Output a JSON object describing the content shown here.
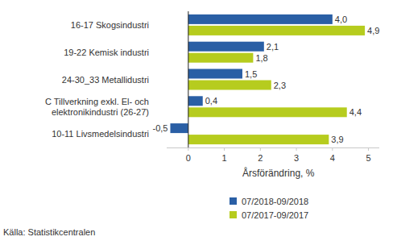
{
  "chart_data": {
    "type": "bar",
    "orientation": "horizontal",
    "categories": [
      "16-17 Skogsindustri",
      "19-22 Kemisk industri",
      "24-30_33 Metallidustri",
      "C Tillverkning exkl. El- och elektronikindustri (26-27)",
      "10-11 Livsmedelsindustri"
    ],
    "series": [
      {
        "name": "07/2018-09/2018",
        "color": "#2a5fa5",
        "values": [
          4.0,
          2.1,
          1.5,
          0.4,
          -0.5
        ],
        "value_labels": [
          "4,0",
          "2,1",
          "1,5",
          "0,4",
          "-0,5"
        ]
      },
      {
        "name": "07/2017-09/2017",
        "color": "#b6cc1e",
        "values": [
          4.9,
          1.8,
          2.3,
          4.4,
          3.9
        ],
        "value_labels": [
          "4,9",
          "1,8",
          "2,3",
          "4,4",
          "3,9"
        ]
      }
    ],
    "xlabel": "Årsförändring, %",
    "xlim": [
      -0.6,
      5.3
    ],
    "xticks": [
      0,
      1,
      2,
      3,
      4,
      5
    ],
    "grid": false,
    "data_labels": true,
    "legend": "bottom",
    "source": "Källa: Statistikcentralen"
  }
}
